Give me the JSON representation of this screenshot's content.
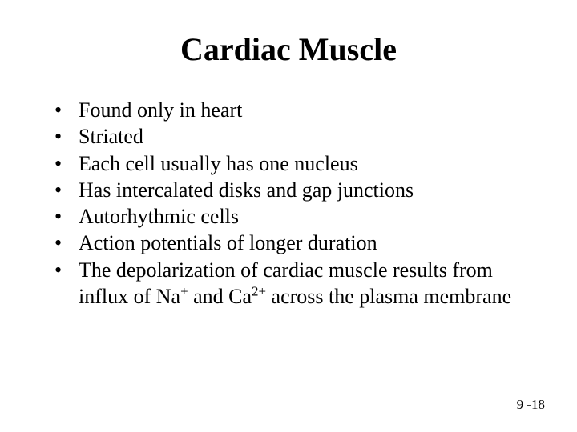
{
  "title": "Cardiac Muscle",
  "title_fontsize": 40,
  "body_fontsize": 26,
  "background_color": "#ffffff",
  "text_color": "#000000",
  "font_family": "Times New Roman",
  "bullets": [
    {
      "text": "Found only in heart"
    },
    {
      "text": "Striated"
    },
    {
      "text": "Each cell usually has one nucleus"
    },
    {
      "text": "Has intercalated disks and gap junctions"
    },
    {
      "text": "Autorhythmic cells"
    },
    {
      "text": "Action potentials of longer duration"
    },
    {
      "pre": "The depolarization of cardiac muscle results from influx of Na",
      "sup1": "+",
      "mid": " and Ca",
      "sup2": "2+",
      "post": " across the plasma membrane"
    }
  ],
  "page_number": "9 -18"
}
